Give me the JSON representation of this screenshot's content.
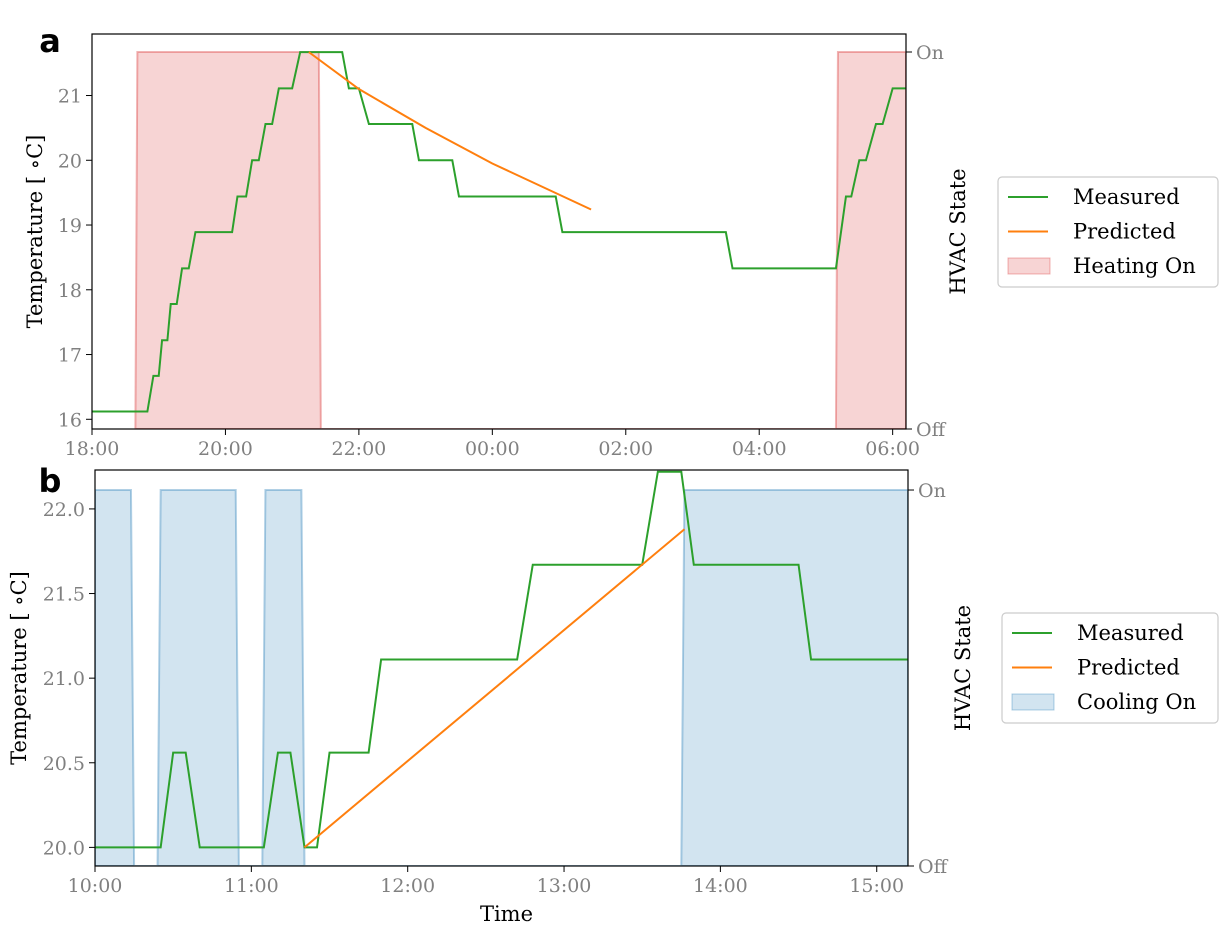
{
  "chart_data": [
    {
      "panel": "a",
      "type": "line",
      "title": "",
      "xlabel": "",
      "ylabel": "Temperature [$^\\circ$C]",
      "ylabel_display": "Temperature [ ∘C]",
      "y2label": "HVAC State",
      "x_unit": "hours since 18:00",
      "xlim": [
        0,
        12.2
      ],
      "ylim": [
        15.85,
        21.95
      ],
      "y2lim": [
        0,
        1
      ],
      "x_ticks": [
        0,
        2,
        4,
        6,
        8,
        10,
        12
      ],
      "x_tick_labels": [
        "18:00",
        "20:00",
        "22:00",
        "00:00",
        "02:00",
        "04:00",
        "06:00"
      ],
      "y_ticks": [
        16,
        17,
        18,
        19,
        20,
        21
      ],
      "y_tick_labels": [
        "16",
        "17",
        "18",
        "19",
        "20",
        "21"
      ],
      "y2_tick_labels": [
        "Off",
        "On"
      ],
      "grid": false,
      "legend_position": "outside-right",
      "series": [
        {
          "name": "Measured",
          "kind": "line",
          "color": "#2ca02c",
          "x": [
            0,
            0.83,
            0.92,
            1.0,
            1.05,
            1.13,
            1.18,
            1.27,
            1.35,
            1.45,
            1.55,
            1.63,
            1.72,
            2.1,
            2.18,
            2.31,
            2.4,
            2.5,
            2.6,
            2.7,
            2.8,
            2.88,
            3.0,
            3.12,
            3.25,
            3.75,
            3.85,
            4.0,
            4.15,
            4.8,
            4.9,
            5.4,
            5.5,
            6.95,
            7.05,
            9.5,
            9.6,
            11.15,
            11.3,
            11.38,
            11.5,
            11.6,
            11.75,
            11.85,
            12.0,
            12.2
          ],
          "y": [
            16.12,
            16.12,
            16.67,
            16.67,
            17.22,
            17.22,
            17.78,
            17.78,
            18.33,
            18.33,
            18.89,
            18.89,
            18.89,
            18.89,
            19.44,
            19.44,
            20.0,
            20.0,
            20.56,
            20.56,
            21.11,
            21.11,
            21.11,
            21.67,
            21.67,
            21.67,
            21.11,
            21.11,
            20.56,
            20.56,
            20.0,
            20.0,
            19.44,
            19.44,
            18.89,
            18.89,
            18.33,
            18.33,
            19.44,
            19.44,
            20.0,
            20.0,
            20.56,
            20.56,
            21.11,
            21.11
          ]
        },
        {
          "name": "Predicted",
          "kind": "line",
          "color": "#ff7f0e",
          "x": [
            3.25,
            4.0,
            5.0,
            6.0,
            7.48
          ],
          "y": [
            21.67,
            21.1,
            20.5,
            19.95,
            19.24
          ]
        },
        {
          "name": "Heating On",
          "kind": "area",
          "color": "#d62728",
          "opacity": 0.2,
          "axis": "y2",
          "x": [
            0.65,
            0.68,
            3.4,
            3.43,
            11.15,
            11.18,
            12.2
          ],
          "y": [
            0,
            1,
            1,
            0,
            0,
            1,
            1
          ]
        }
      ]
    },
    {
      "panel": "b",
      "type": "line",
      "title": "",
      "xlabel": "Time",
      "ylabel": "Temperature [$^\\circ$C]",
      "ylabel_display": "Temperature [ ∘C]",
      "y2label": "HVAC State",
      "x_unit": "hours since 10:00",
      "xlim": [
        0,
        5.2
      ],
      "ylim": [
        19.89,
        22.23
      ],
      "y2lim": [
        0,
        1
      ],
      "x_ticks": [
        0,
        1,
        2,
        3,
        4,
        5
      ],
      "x_tick_labels": [
        "10:00",
        "11:00",
        "12:00",
        "13:00",
        "14:00",
        "15:00"
      ],
      "y_ticks": [
        20.0,
        20.5,
        21.0,
        21.5,
        22.0
      ],
      "y_tick_labels": [
        "20.0",
        "20.5",
        "21.0",
        "21.5",
        "22.0"
      ],
      "y2_tick_labels": [
        "Off",
        "On"
      ],
      "grid": false,
      "legend_position": "outside-right",
      "series": [
        {
          "name": "Measured",
          "kind": "line",
          "color": "#2ca02c",
          "x": [
            0,
            0.42,
            0.5,
            0.58,
            0.67,
            1.08,
            1.17,
            1.25,
            1.34,
            1.42,
            1.5,
            1.75,
            1.83,
            2.7,
            2.8,
            3.0,
            3.5,
            3.6,
            3.75,
            3.83,
            4.5,
            4.58,
            5.2
          ],
          "y": [
            20.0,
            20.0,
            20.56,
            20.56,
            20.0,
            20.0,
            20.56,
            20.56,
            20.0,
            20.0,
            20.56,
            20.56,
            21.11,
            21.11,
            21.67,
            21.67,
            21.67,
            22.22,
            22.22,
            21.67,
            21.67,
            21.11,
            21.11
          ]
        },
        {
          "name": "Predicted",
          "kind": "line",
          "color": "#ff7f0e",
          "x": [
            1.34,
            3.77
          ],
          "y": [
            20.0,
            21.88
          ]
        },
        {
          "name": "Cooling On",
          "kind": "area",
          "color": "#1f77b4",
          "opacity": 0.2,
          "axis": "y2",
          "x": [
            0,
            0.23,
            0.25,
            0.4,
            0.42,
            0.9,
            0.92,
            1.07,
            1.09,
            1.32,
            1.34,
            3.75,
            3.77,
            5.2
          ],
          "y": [
            1,
            1,
            0,
            0,
            1,
            1,
            0,
            0,
            1,
            1,
            0,
            0,
            1,
            1
          ]
        }
      ]
    }
  ]
}
